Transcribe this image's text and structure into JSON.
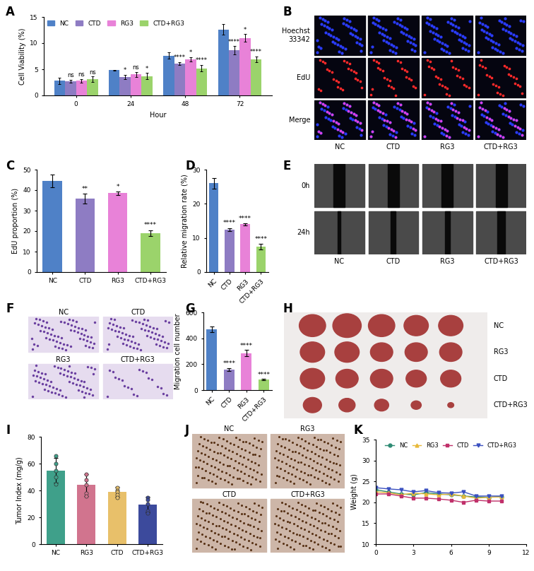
{
  "chart_data": [
    {
      "panel": "A",
      "type": "bar",
      "x_label": "Hour",
      "y_label": "Cell Viability (%)",
      "categories": [
        "0",
        "24",
        "48",
        "72"
      ],
      "series": [
        {
          "name": "NC",
          "color": "#4f81c7",
          "values": [
            2.8,
            4.8,
            7.6,
            12.6
          ],
          "errors": [
            0.6,
            0.1,
            0.6,
            1.0
          ],
          "significance": [
            null,
            null,
            null,
            null
          ]
        },
        {
          "name": "CTD",
          "color": "#8e7cc3",
          "values": [
            2.7,
            3.5,
            6.1,
            8.6
          ],
          "errors": [
            0.3,
            0.4,
            0.3,
            0.8
          ],
          "significance": [
            "ns",
            "*",
            "****",
            "****"
          ]
        },
        {
          "name": "RG3",
          "color": "#e882d8",
          "values": [
            2.8,
            4.0,
            6.9,
            11.0
          ],
          "errors": [
            0.3,
            0.5,
            0.4,
            0.7
          ],
          "significance": [
            "ns",
            "ns",
            "*",
            "*"
          ]
        },
        {
          "name": "CTD+RG3",
          "color": "#9bd36b",
          "values": [
            3.1,
            3.7,
            5.2,
            6.9
          ],
          "errors": [
            0.5,
            0.6,
            0.6,
            0.6
          ],
          "significance": [
            "ns",
            "*",
            "****",
            "****"
          ]
        }
      ],
      "ylim": [
        0,
        15
      ],
      "yticks": [
        0,
        5,
        10,
        15
      ],
      "legend": "upper left"
    },
    {
      "panel": "C",
      "type": "bar",
      "y_label": "EdU proportion (%)",
      "categories": [
        "NC",
        "CTD",
        "RG3",
        "CTD+RG3"
      ],
      "values": [
        44.5,
        35.8,
        38.5,
        19.0
      ],
      "errors": [
        3.0,
        2.5,
        0.8,
        1.5
      ],
      "significance": [
        null,
        "**",
        "*",
        "****"
      ],
      "colors": [
        "#4f81c7",
        "#8e7cc3",
        "#e882d8",
        "#9bd36b"
      ],
      "ylim": [
        0,
        50
      ],
      "yticks": [
        0,
        10,
        20,
        30,
        40,
        50
      ]
    },
    {
      "panel": "D",
      "type": "bar",
      "y_label": "Relative migration rate (%)",
      "categories": [
        "NC",
        "CTD",
        "RG3",
        "CTD+RG3"
      ],
      "values": [
        26.0,
        12.5,
        14.0,
        7.5
      ],
      "errors": [
        1.5,
        0.4,
        0.3,
        0.8
      ],
      "significance": [
        null,
        "****",
        "****",
        "****"
      ],
      "colors": [
        "#4f81c7",
        "#8e7cc3",
        "#e882d8",
        "#9bd36b"
      ],
      "ylim": [
        0,
        30
      ],
      "yticks": [
        0,
        10,
        20,
        30
      ]
    },
    {
      "panel": "G",
      "type": "bar",
      "y_label": "Migration cell number",
      "categories": [
        "NC",
        "CTD",
        "RG3",
        "CTD+RG3"
      ],
      "values": [
        470,
        160,
        285,
        80
      ],
      "errors": [
        20,
        10,
        25,
        5
      ],
      "significance": [
        null,
        "****",
        "****",
        "****"
      ],
      "colors": [
        "#4f81c7",
        "#8e7cc3",
        "#e882d8",
        "#9bd36b"
      ],
      "ylim": [
        0,
        600
      ],
      "yticks": [
        0,
        200,
        400,
        600
      ]
    },
    {
      "panel": "I",
      "type": "bar",
      "y_label": "Tumor Index (mg/g)",
      "categories": [
        "NC",
        "RG3",
        "CTD",
        "CTD+RG3"
      ],
      "values": [
        55,
        44,
        39,
        29.5
      ],
      "errors": [
        9,
        8,
        3.5,
        6
      ],
      "points": [
        [
          66,
          60,
          55,
          50,
          45
        ],
        [
          52,
          48,
          44,
          38,
          36
        ],
        [
          42,
          40,
          39,
          37,
          35
        ],
        [
          35,
          33,
          30,
          25,
          23
        ]
      ],
      "colors": [
        "#3fa08a",
        "#d1748e",
        "#e8c06a",
        "#3c4a9c"
      ],
      "ylim": [
        0,
        80
      ],
      "yticks": [
        0,
        20,
        40,
        60,
        80
      ]
    },
    {
      "panel": "K",
      "type": "line",
      "y_label": "Weight (g)",
      "x": [
        0,
        1,
        2,
        3,
        4,
        5,
        6,
        7,
        8,
        9,
        10
      ],
      "series": [
        {
          "name": "NC",
          "color": "#2e8b74",
          "marker": "circle",
          "values": [
            23.0,
            22.5,
            22.0,
            21.8,
            22.3,
            22.0,
            21.8,
            21.5,
            21.3,
            21.2,
            21.4
          ]
        },
        {
          "name": "RG3",
          "color": "#e8b93a",
          "marker": "triangle_up",
          "values": [
            22.5,
            22.3,
            21.8,
            22.2,
            22.0,
            21.8,
            22.0,
            21.5,
            21.0,
            21.2,
            21.3
          ]
        },
        {
          "name": "CTD",
          "color": "#c0306a",
          "marker": "square",
          "values": [
            22.0,
            22.0,
            21.5,
            21.0,
            21.0,
            20.8,
            20.5,
            20.0,
            20.5,
            20.3,
            20.3
          ]
        },
        {
          "name": "CTD+RG3",
          "color": "#3a50c0",
          "marker": "triangle_down",
          "values": [
            23.5,
            23.2,
            23.0,
            22.5,
            22.8,
            22.3,
            22.2,
            22.5,
            21.5,
            21.5,
            21.5
          ]
        }
      ],
      "xlim": [
        0,
        12
      ],
      "xticks": [
        0,
        3,
        6,
        9,
        12
      ],
      "ylim": [
        10,
        35
      ],
      "yticks": [
        10,
        15,
        20,
        25,
        30,
        35
      ],
      "legend": "upper center"
    }
  ],
  "image_panels": [
    {
      "panel": "B",
      "row_labels": [
        "Hoechst\n33342",
        "EdU",
        "Merge"
      ],
      "column_labels": [
        "NC",
        "CTD",
        "RG3",
        "CTD+RG3"
      ]
    },
    {
      "panel": "E",
      "row_labels": [
        "0h",
        "24h"
      ],
      "column_labels": [
        "NC",
        "CTD",
        "RG3",
        "CTD+RG3"
      ]
    },
    {
      "panel": "F",
      "image_labels": [
        "NC",
        "CTD",
        "RG3",
        "CTD+RG3"
      ]
    },
    {
      "panel": "H",
      "row_labels": [
        "NC",
        "RG3",
        "CTD",
        "CTD+RG3"
      ]
    },
    {
      "panel": "J",
      "image_labels": [
        "NC",
        "RG3",
        "CTD",
        "CTD+RG3"
      ]
    }
  ]
}
